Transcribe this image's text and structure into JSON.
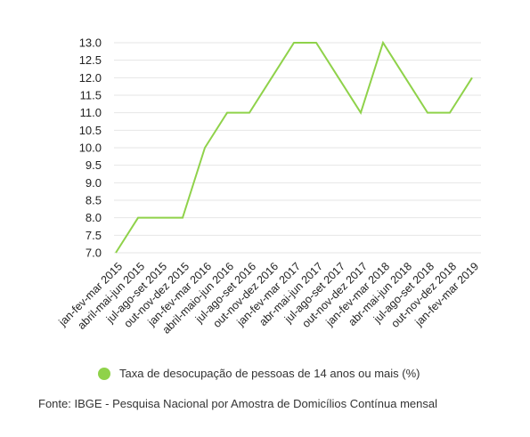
{
  "chart_data": {
    "type": "line",
    "categories": [
      "jan-fev-mar 2015",
      "abril-mai-jun 2015",
      "jul-ago-set 2015",
      "out-nov-dez 2015",
      "jan-fev-mar 2016",
      "abril-maio-jun 2016",
      "jul-ago-set 2016",
      "out-nov-dez 2016",
      "jan-fev-mar 2017",
      "abr-mai-jun 2017",
      "jul-ago-set 2017",
      "out-nov-dez 2017",
      "jan-fev-mar 2018",
      "abr-mai-jun 2018",
      "jul-ago-set 2018",
      "out-nov-dez 2018",
      "jan-fev-mar 2019"
    ],
    "series": [
      {
        "name": "Taxa de desocupação de pessoas de 14 anos ou mais (%)",
        "color": "#8fd24a",
        "values": [
          7.0,
          8.0,
          8.0,
          8.0,
          10.0,
          11.0,
          11.0,
          12.0,
          13.0,
          13.0,
          12.0,
          11.0,
          13.0,
          12.0,
          11.0,
          11.0,
          12.0
        ]
      }
    ],
    "ylim": [
      7.0,
      13.0
    ],
    "yticks": [
      "7.0",
      "7.5",
      "8.0",
      "8.5",
      "9.0",
      "9.5",
      "10.0",
      "10.5",
      "11.0",
      "11.5",
      "12.0",
      "12.5",
      "13.0"
    ],
    "grid": true,
    "legend_position": "bottom"
  },
  "source": "Fonte: IBGE - Pesquisa Nacional por Amostra de Domicílios Contínua mensal"
}
